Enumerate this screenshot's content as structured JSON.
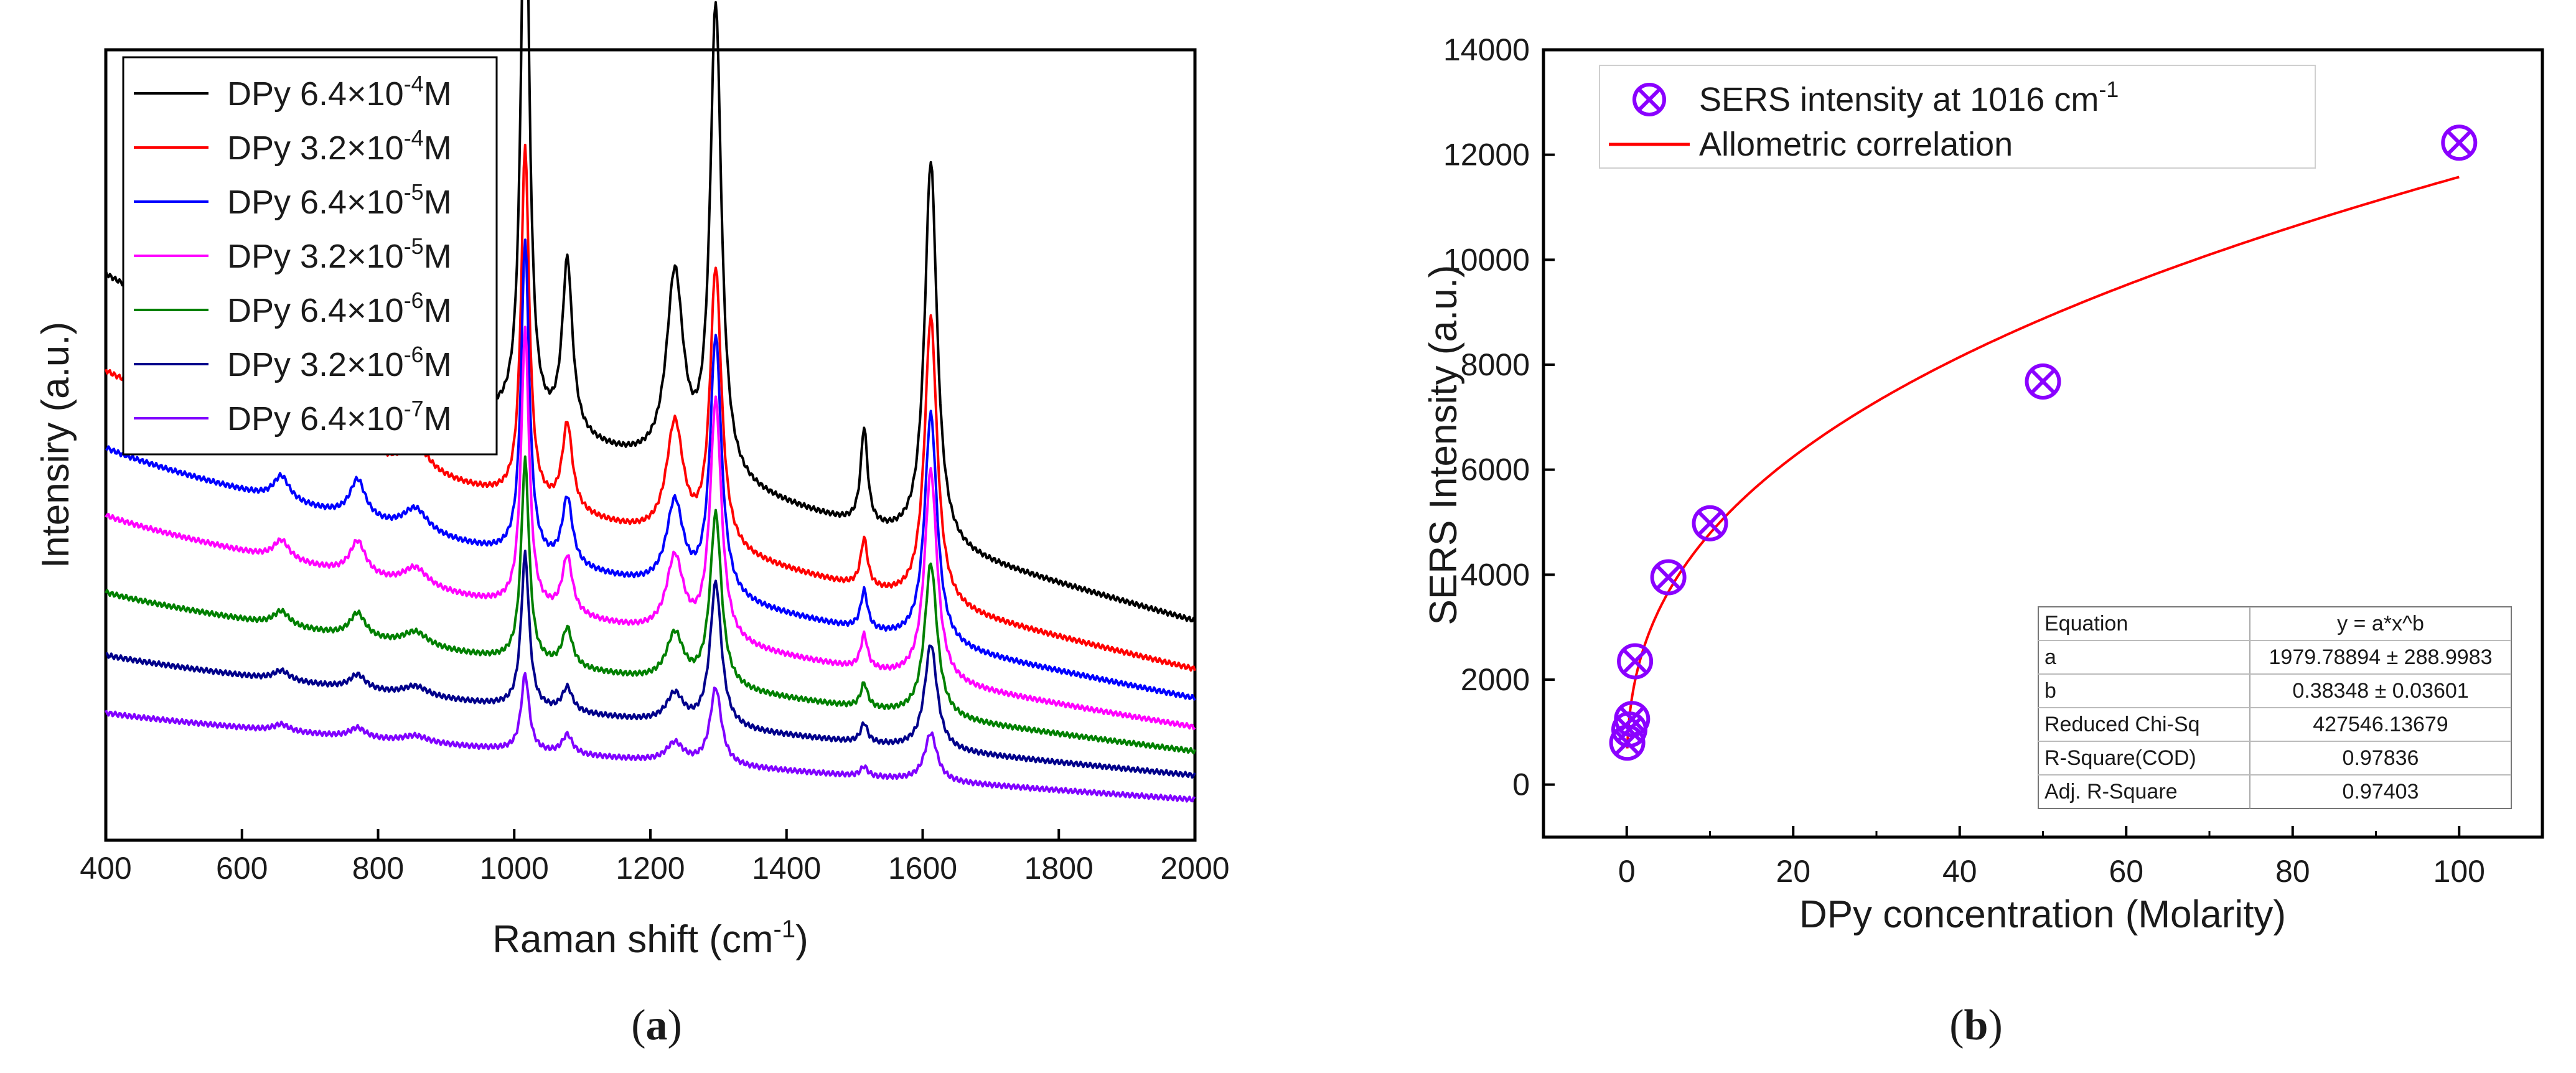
{
  "panels": {
    "a": {
      "label_open": "(",
      "label_letter": "a",
      "label_close": ")"
    },
    "b": {
      "label_open": "(",
      "label_letter": "b",
      "label_close": ")"
    }
  },
  "chart_data": [
    {
      "id": "a",
      "type": "line",
      "title": "",
      "xlabel": "Raman shift (cm",
      "xlabel_sup": "-1",
      "xlabel_end": ")",
      "ylabel": "Intensiry (a.u.)",
      "xlim": [
        400,
        2000
      ],
      "x_ticks": [
        400,
        600,
        800,
        1000,
        1200,
        1400,
        1600,
        1800,
        2000
      ],
      "y_ticks_shown": false,
      "legend_position": "top-left",
      "peaks_cm1": [
        658,
        770,
        855,
        1016,
        1078,
        1236,
        1296,
        1514,
        1612
      ],
      "series": [
        {
          "name": "DPy 6.4×10",
          "exp": "-4",
          "unit": "M",
          "color": "#000000",
          "start": 56,
          "end": 20,
          "peaks": [
            6,
            11,
            7,
            64,
            18,
            20,
            49,
            10,
            40
          ]
        },
        {
          "name": "DPy 3.2×10",
          "exp": "-4",
          "unit": "M",
          "color": "#ff0000",
          "start": 46,
          "end": 15,
          "peaks": [
            3,
            5,
            3,
            37,
            9,
            12,
            29,
            5,
            30
          ]
        },
        {
          "name": "DPy 6.4×10",
          "exp": "-5",
          "unit": "M",
          "color": "#0000ff",
          "start": 38,
          "end": 12,
          "peaks": [
            2.5,
            4,
            2.5,
            33,
            7,
            9,
            27,
            4,
            24
          ]
        },
        {
          "name": "DPy 3.2×10",
          "exp": "-5",
          "unit": "M",
          "color": "#ff00ff",
          "start": 31,
          "end": 9,
          "peaks": [
            2,
            3.5,
            2,
            29,
            6,
            8,
            25,
            3.5,
            22
          ]
        },
        {
          "name": "DPy 6.4×10",
          "exp": "-6",
          "unit": "M",
          "color": "#008000",
          "start": 23,
          "end": 6.5,
          "peaks": [
            1.5,
            2.5,
            1.5,
            21,
            4,
            5,
            18,
            2.5,
            16
          ]
        },
        {
          "name": "DPy 3.2×10",
          "exp": "-6",
          "unit": "M",
          "color": "#00008b",
          "start": 16.5,
          "end": 4,
          "peaks": [
            1,
            1.5,
            1,
            16,
            2.5,
            3,
            15,
            2,
            11
          ]
        },
        {
          "name": "DPy 6.4×10",
          "exp": "-7",
          "unit": "M",
          "color": "#8000ff",
          "start": 10.5,
          "end": 1.5,
          "peaks": [
            0.7,
            1,
            0.7,
            8,
            2,
            2,
            8,
            1,
            5
          ]
        }
      ]
    },
    {
      "id": "b",
      "type": "scatter",
      "title": "",
      "xlabel": "DPy concentration (Molarity)",
      "ylabel": "SERS Intensity (a.u.)",
      "xlim": [
        -10,
        110
      ],
      "ylim": [
        -1000,
        14000
      ],
      "x_ticks": [
        0,
        20,
        40,
        60,
        80,
        100
      ],
      "y_ticks": [
        0,
        2000,
        4000,
        6000,
        8000,
        10000,
        12000,
        14000
      ],
      "y_tick_labels": [
        "0",
        "2000",
        "4000",
        "6000",
        "8000",
        "10000",
        "12000",
        "14000"
      ],
      "legend_position": "top",
      "series": [
        {
          "name": "SERS intensity at 1016 cm",
          "name_sup": "-1",
          "kind": "scatter",
          "color": "#8a00ff",
          "x": [
            0.064,
            0.32,
            0.64,
            1,
            5,
            10,
            50,
            100
          ],
          "y": [
            800,
            1050,
            1250,
            2350,
            3950,
            4980,
            7680,
            12230
          ]
        },
        {
          "name": "Allometric correlation",
          "kind": "fit",
          "color": "#ff0000",
          "a": 1979.78894,
          "b": 0.38348,
          "x_range": [
            0.064,
            100
          ]
        }
      ],
      "fit_table": {
        "rows": [
          [
            "Equation",
            "y = a*x^b"
          ],
          [
            "a",
            "1979.78894 ± 288.9983"
          ],
          [
            "b",
            "0.38348 ± 0.03601"
          ],
          [
            "Reduced Chi-Sq",
            "427546.13679"
          ],
          [
            "R-Square(COD)",
            "0.97836"
          ],
          [
            "Adj. R-Square",
            "0.97403"
          ]
        ]
      }
    }
  ]
}
